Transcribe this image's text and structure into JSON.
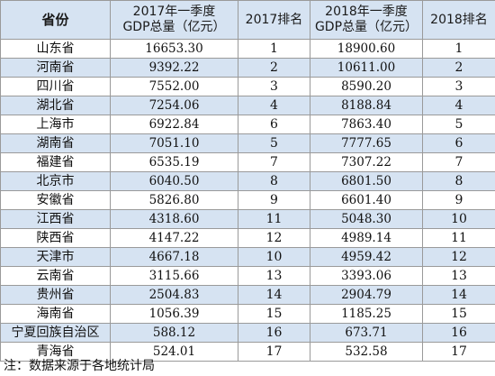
{
  "table": {
    "headers": {
      "province": "省份",
      "gdp2017_line1": "2017年一季度",
      "gdp2017_line2": "GDP总量（亿元）",
      "rank2017": "2017排名",
      "gdp2018_line1": "2018年一季度",
      "gdp2018_line2": "GDP总量（亿元）",
      "rank2018": "2018排名"
    },
    "rows": [
      {
        "province": "山东省",
        "gdp2017": "16653.30",
        "rank2017": "1",
        "gdp2018": "18900.60",
        "rank2018": "1"
      },
      {
        "province": "河南省",
        "gdp2017": "9392.22",
        "rank2017": "2",
        "gdp2018": "10611.00",
        "rank2018": "2"
      },
      {
        "province": "四川省",
        "gdp2017": "7552.00",
        "rank2017": "3",
        "gdp2018": "8590.20",
        "rank2018": "3"
      },
      {
        "province": "湖北省",
        "gdp2017": "7254.06",
        "rank2017": "4",
        "gdp2018": "8188.84",
        "rank2018": "4"
      },
      {
        "province": "上海市",
        "gdp2017": "6922.84",
        "rank2017": "6",
        "gdp2018": "7863.40",
        "rank2018": "5"
      },
      {
        "province": "湖南省",
        "gdp2017": "7051.10",
        "rank2017": "5",
        "gdp2018": "7777.65",
        "rank2018": "6"
      },
      {
        "province": "福建省",
        "gdp2017": "6535.19",
        "rank2017": "7",
        "gdp2018": "7307.22",
        "rank2018": "7"
      },
      {
        "province": "北京市",
        "gdp2017": "6040.50",
        "rank2017": "8",
        "gdp2018": "6801.50",
        "rank2018": "8"
      },
      {
        "province": "安徽省",
        "gdp2017": "5826.80",
        "rank2017": "9",
        "gdp2018": "6601.40",
        "rank2018": "9"
      },
      {
        "province": "江西省",
        "gdp2017": "4318.60",
        "rank2017": "11",
        "gdp2018": "5048.30",
        "rank2018": "10"
      },
      {
        "province": "陕西省",
        "gdp2017": "4147.22",
        "rank2017": "12",
        "gdp2018": "4989.14",
        "rank2018": "11"
      },
      {
        "province": "天津市",
        "gdp2017": "4667.18",
        "rank2017": "10",
        "gdp2018": "4959.42",
        "rank2018": "12"
      },
      {
        "province": "云南省",
        "gdp2017": "3115.66",
        "rank2017": "13",
        "gdp2018": "3393.06",
        "rank2018": "13"
      },
      {
        "province": "贵州省",
        "gdp2017": "2504.83",
        "rank2017": "14",
        "gdp2018": "2904.79",
        "rank2018": "14"
      },
      {
        "province": "海南省",
        "gdp2017": "1056.39",
        "rank2017": "15",
        "gdp2018": "1185.25",
        "rank2018": "15"
      },
      {
        "province": "宁夏回族自治区",
        "gdp2017": "588.12",
        "rank2017": "16",
        "gdp2018": "673.71",
        "rank2018": "16"
      },
      {
        "province": "青海省",
        "gdp2017": "524.01",
        "rank2017": "17",
        "gdp2018": "532.58",
        "rank2018": "17"
      }
    ]
  },
  "note": "注：数据来源于各地统计局"
}
